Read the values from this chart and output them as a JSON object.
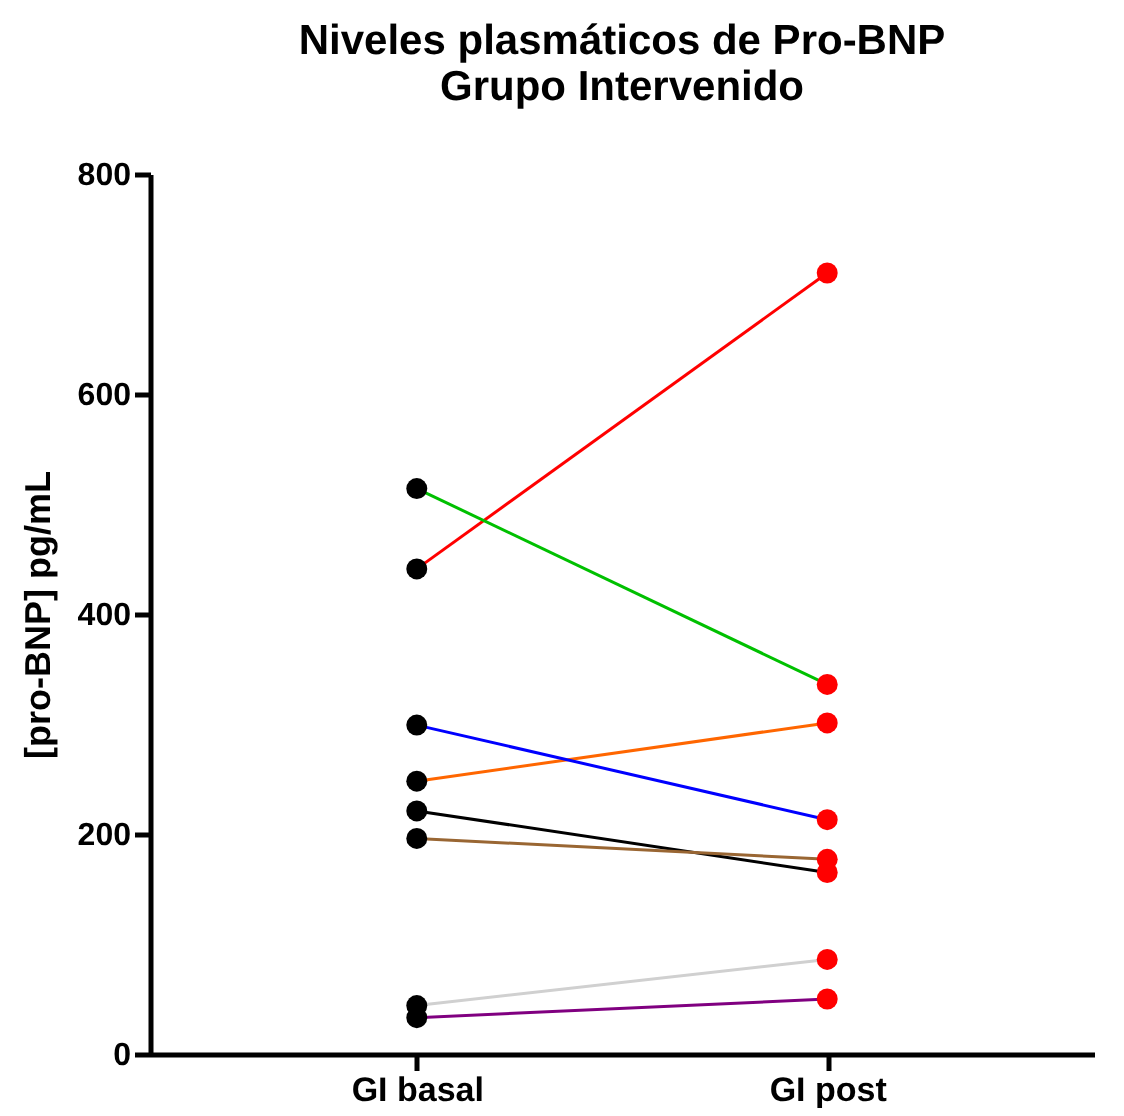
{
  "chart_data": {
    "type": "line",
    "title": "Niveles plasmáticos de Pro-BNP\nGrupo Intervenido",
    "ylabel": "[pro-BNP] pg/mL",
    "categories": [
      "GI basal",
      "GI post"
    ],
    "series": [
      {
        "color": "#ff0000",
        "values": [
          441,
          710
        ],
        "colors": [
          "#000000",
          "#ff0000"
        ]
      },
      {
        "color": "#00c000",
        "values": [
          514,
          336
        ],
        "colors": [
          "#000000",
          "#ff0000"
        ]
      },
      {
        "color": "#ff6600",
        "values": [
          248,
          301
        ],
        "colors": [
          "#000000",
          "#ff0000"
        ]
      },
      {
        "color": "#0000ff",
        "values": [
          299,
          213
        ],
        "colors": [
          "#000000",
          "#ff0000"
        ]
      },
      {
        "color": "#000000",
        "values": [
          221,
          165
        ],
        "colors": [
          "#000000",
          "#ff0000"
        ]
      },
      {
        "color": "#996633",
        "values": [
          196,
          177
        ],
        "colors": [
          "#000000",
          "#ff0000"
        ]
      },
      {
        "color": "#d0d0d0",
        "values": [
          44,
          86
        ],
        "colors": [
          "#000000",
          "#ff0000"
        ]
      },
      {
        "color": "#800080",
        "values": [
          33,
          50
        ],
        "colors": [
          "#000000",
          "#ff0000"
        ]
      }
    ],
    "ylim": [
      0,
      800
    ],
    "yticks": [
      0,
      200,
      400,
      600,
      800
    ],
    "marker": "circle",
    "grid": false
  }
}
